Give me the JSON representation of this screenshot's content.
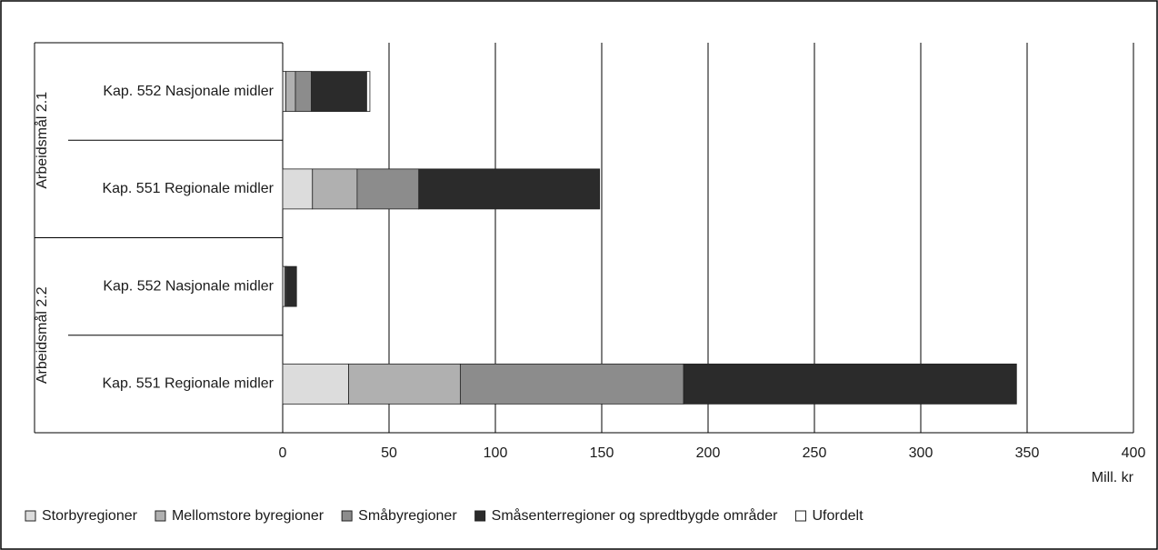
{
  "chart_data": {
    "type": "stacked-barh",
    "group_labels": [
      "Arbeidsmål 2.1",
      "Arbeidsmål 2.2"
    ],
    "categories": [
      "Kap. 552 Nasjonale midler",
      "Kap. 551 Regionale midler",
      "Kap. 552 Nasjonale midler",
      "Kap. 551 Regionale midler"
    ],
    "series": [
      {
        "name": "Storbyregioner",
        "color": "#dcdcdc",
        "values": [
          1.5,
          14,
          1,
          31
        ]
      },
      {
        "name": "Mellomstore byregioner",
        "color": "#b0b0b0",
        "values": [
          4.5,
          21,
          0.5,
          52.5
        ]
      },
      {
        "name": "Småbyregioner",
        "color": "#8c8c8c",
        "values": [
          7.5,
          29,
          0.5,
          105
        ]
      },
      {
        "name": "Småsenterregioner og spredtbygde områder",
        "color": "#2b2b2b",
        "values": [
          26,
          85,
          4.5,
          156.5
        ]
      },
      {
        "name": "Ufordelt",
        "color": "#ffffff",
        "values": [
          1.5,
          0,
          0,
          0
        ]
      }
    ],
    "xlabel": "Mill. kr",
    "xlim": [
      0,
      400
    ],
    "xticks": [
      0,
      50,
      100,
      150,
      200,
      250,
      300,
      350,
      400
    ],
    "grid": true,
    "legend": "bottom"
  }
}
